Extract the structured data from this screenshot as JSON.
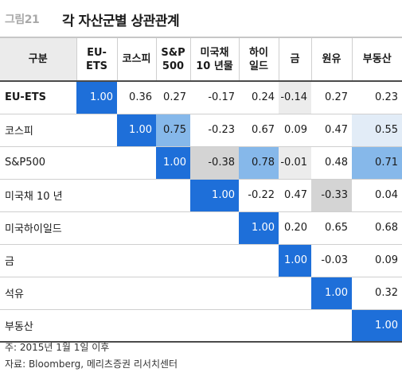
{
  "figure_label": "그림21",
  "figure_title": "각 자산군별 상관관계",
  "columns": [
    "구분",
    "EU-\nETS",
    "코스피",
    "S&P\n500",
    "미국채\n10 년물",
    "하이\n일드",
    "금",
    "원유",
    "부동산"
  ],
  "rows": [
    {
      "label": "EU-ETS",
      "values": [
        "1.00",
        "0.36",
        "0.27",
        "-0.17",
        "0.24",
        "-0.14",
        "0.27",
        "0.23"
      ]
    },
    {
      "label": "코스피",
      "values": [
        "",
        "1.00",
        "0.75",
        "-0.23",
        "0.67",
        "0.09",
        "0.47",
        "0.55"
      ]
    },
    {
      "label": "S&P500",
      "values": [
        "",
        "",
        "1.00",
        "-0.38",
        "0.78",
        "-0.01",
        "0.48",
        "0.71"
      ]
    },
    {
      "label": "미국채 10 년",
      "values": [
        "",
        "",
        "",
        "1.00",
        "-0.22",
        "0.47",
        "-0.33",
        "0.04"
      ]
    },
    {
      "label": "미국하이일드",
      "values": [
        "",
        "",
        "",
        "",
        "1.00",
        "0.20",
        "0.65",
        "0.68"
      ]
    },
    {
      "label": "금",
      "values": [
        "",
        "",
        "",
        "",
        "",
        "1.00",
        "-0.03",
        "0.09"
      ]
    },
    {
      "label": "석유",
      "values": [
        "",
        "",
        "",
        "",
        "",
        "",
        "1.00",
        "0.32"
      ]
    },
    {
      "label": "부동산",
      "values": [
        "",
        "",
        "",
        "",
        "",
        "",
        "",
        "1.00"
      ]
    }
  ],
  "shading": [
    [
      "diag",
      "",
      "",
      "",
      "",
      "grey-light",
      "",
      ""
    ],
    [
      "",
      "diag",
      "mid",
      "",
      "",
      "",
      "",
      "light"
    ],
    [
      "",
      "",
      "diag",
      "grey-dark",
      "mid",
      "grey-light",
      "",
      "mid"
    ],
    [
      "",
      "",
      "",
      "diag",
      "",
      "",
      "grey-dark",
      ""
    ],
    [
      "",
      "",
      "",
      "",
      "diag",
      "",
      "",
      ""
    ],
    [
      "",
      "",
      "",
      "",
      "",
      "diag",
      "",
      ""
    ],
    [
      "",
      "",
      "",
      "",
      "",
      "",
      "diag",
      ""
    ],
    [
      "",
      "",
      "",
      "",
      "",
      "",
      "",
      "diag"
    ]
  ],
  "footnotes": {
    "note": "주: 2015년 1월 1일 이후",
    "source": "자료: Bloomberg, 메리츠증권 리서치센터"
  }
}
